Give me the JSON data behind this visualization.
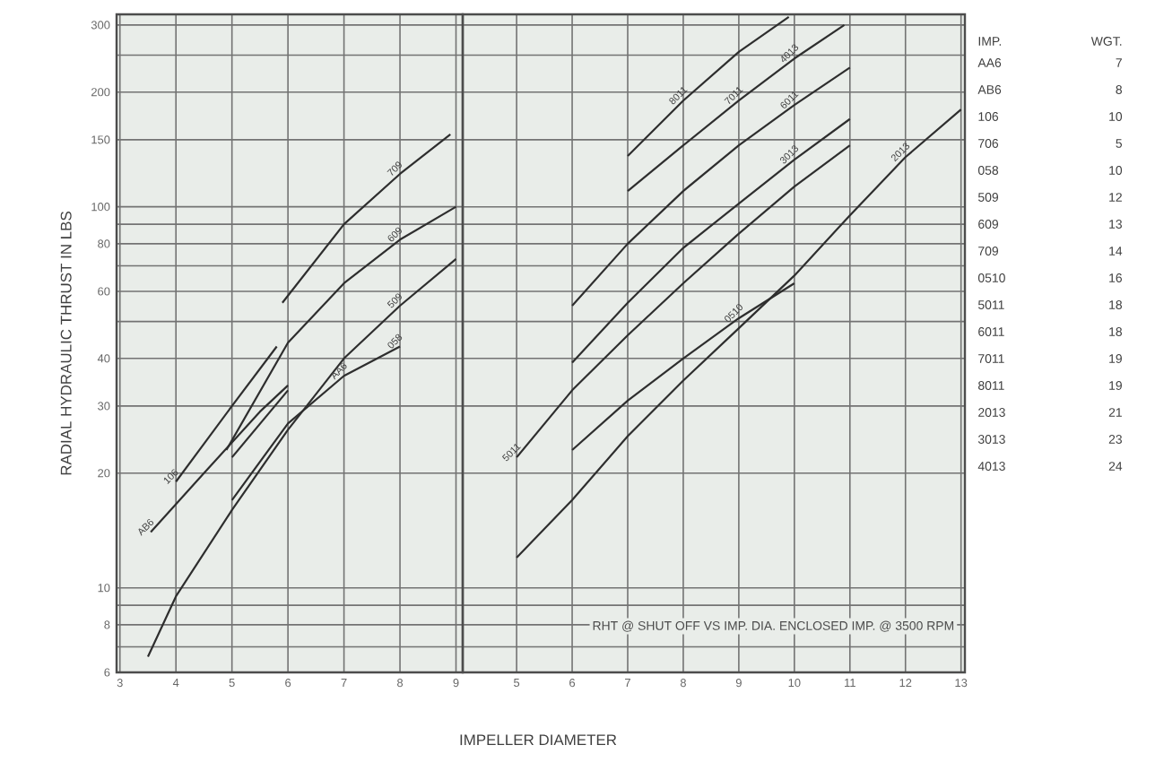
{
  "chart_data": [
    {
      "type": "line",
      "ylabel": "RADIAL HYDRAULIC THRUST IN LBS",
      "color": "#2e2e2e",
      "line_style": "solid",
      "grid": true,
      "log": "y",
      "xlim": [
        2.94,
        9.12
      ],
      "xticks": [
        3,
        4,
        5,
        6,
        7,
        8,
        9
      ],
      "ylim": [
        6,
        320
      ],
      "yticks": [
        6,
        {
          "value": 7,
          "label": null
        },
        8,
        {
          "value": 9,
          "label": null
        },
        10,
        20,
        30,
        40,
        {
          "value": 50,
          "label": null
        },
        60,
        {
          "value": 70,
          "label": null
        },
        80,
        {
          "value": 90,
          "label": null
        },
        100,
        150,
        200,
        {
          "value": 250,
          "label": null
        },
        300
      ],
      "series": [
        {
          "x": [
            3.55,
            4.5,
            5.5,
            6.0
          ],
          "values": [
            14,
            20,
            29,
            34
          ]
        },
        {
          "x": [
            4.0,
            5.0,
            5.8
          ],
          "values": [
            19,
            30,
            43
          ]
        },
        {
          "x": [
            5.0,
            6.0
          ],
          "values": [
            22,
            33
          ]
        },
        {
          "x": [
            5.0,
            6.0,
            7.0,
            8.0
          ],
          "values": [
            17,
            27,
            36,
            43
          ]
        },
        {
          "x": [
            3.5,
            4,
            5,
            6,
            7,
            8,
            9
          ],
          "values": [
            6.6,
            9.5,
            16,
            26,
            40,
            55,
            73
          ]
        },
        {
          "x": [
            4.9,
            6,
            7,
            8,
            9
          ],
          "values": [
            23,
            44,
            63,
            82,
            100
          ]
        },
        {
          "x": [
            5.9,
            7,
            8,
            8.9
          ],
          "values": [
            56,
            90,
            122,
            155
          ]
        }
      ],
      "annotations": [
        {
          "text": "AB6",
          "x": 3.55,
          "y": 14
        },
        {
          "text": "106",
          "x": 4.0,
          "y": 19
        },
        {
          "text": "AA6",
          "x": 7.0,
          "y": 36
        },
        {
          "text": "058",
          "x": 8.0,
          "y": 43
        },
        {
          "text": "509",
          "x": 8,
          "y": 55
        },
        {
          "text": "609",
          "x": 8,
          "y": 82
        },
        {
          "text": "709",
          "x": 8,
          "y": 122
        }
      ]
    },
    {
      "type": "line",
      "xlabel": "IMPELLER DIAMETER",
      "color": "#2e2e2e",
      "line_style": "solid",
      "grid": true,
      "log": "y",
      "tick_labels": "x",
      "xlim": [
        4.03,
        13.07
      ],
      "xticks": [
        5,
        6,
        7,
        8,
        9,
        10,
        11,
        12,
        13
      ],
      "ylim": [
        6,
        320
      ],
      "yticks": [
        6,
        {
          "value": 7,
          "label": null
        },
        8,
        {
          "value": 9,
          "label": null
        },
        10,
        20,
        30,
        40,
        {
          "value": 50,
          "label": null
        },
        60,
        {
          "value": 70,
          "label": null
        },
        80,
        {
          "value": 90,
          "label": null
        },
        100,
        150,
        200,
        {
          "value": 250,
          "label": null
        },
        300
      ],
      "series": [
        {
          "x": [
            7,
            8,
            9,
            9.9
          ],
          "values": [
            136,
            190,
            255,
            315
          ]
        },
        {
          "x": [
            7,
            8,
            9,
            10,
            10.9
          ],
          "values": [
            110,
            145,
            190,
            245,
            300
          ]
        },
        {
          "x": [
            6,
            7,
            8,
            9,
            10,
            11
          ],
          "values": [
            55,
            80,
            110,
            145,
            185,
            232
          ]
        },
        {
          "x": [
            6,
            7,
            8,
            9,
            10,
            11
          ],
          "values": [
            39,
            56,
            78,
            102,
            133,
            170
          ]
        },
        {
          "x": [
            5,
            6,
            7,
            8,
            9,
            10,
            11
          ],
          "values": [
            22,
            33,
            46,
            63,
            85,
            113,
            145
          ]
        },
        {
          "x": [
            6,
            7,
            8,
            9,
            10
          ],
          "values": [
            23,
            31,
            40,
            51,
            63
          ]
        },
        {
          "x": [
            5,
            6,
            7,
            8,
            9,
            10,
            11,
            12,
            13
          ],
          "values": [
            12,
            17,
            25,
            35,
            48,
            66,
            95,
            135,
            180
          ]
        }
      ],
      "annotations": [
        {
          "text": "5011",
          "x": 5,
          "y": 22
        },
        {
          "text": "0510",
          "x": 9,
          "y": 51
        },
        {
          "text": "8011",
          "x": 8,
          "y": 190
        },
        {
          "text": "7011",
          "x": 9,
          "y": 190
        },
        {
          "text": "4013",
          "x": 10,
          "y": 245
        },
        {
          "text": "6011",
          "x": 10,
          "y": 185
        },
        {
          "text": "3013",
          "x": 10,
          "y": 133
        },
        {
          "text": "2013",
          "x": 12,
          "y": 135
        },
        "RHT @ SHUT OFF VS IMP. DIA. ENCLOSED IMP. @ 3500 RPM"
      ]
    },
    {
      "type": "other",
      "xlabel": "IMP.",
      "ylabel": "WGT.",
      "data_labels": true,
      "categories": [
        "AA6",
        "AB6",
        "106",
        "706",
        "058",
        "509",
        "609",
        "709",
        "0510",
        "5011",
        "6011",
        "7011",
        "8011",
        "2013",
        "3013",
        "4013"
      ],
      "values": [
        7,
        8,
        10,
        5,
        10,
        12,
        13,
        14,
        16,
        18,
        18,
        19,
        19,
        21,
        23,
        24
      ]
    }
  ]
}
